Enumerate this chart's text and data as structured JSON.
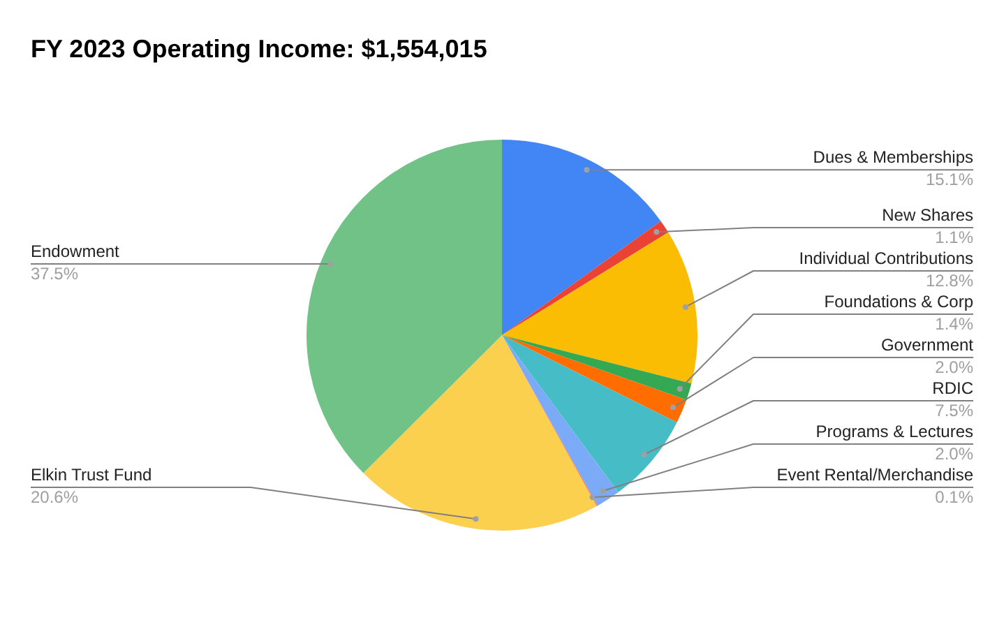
{
  "chart_data": {
    "type": "pie",
    "title": "FY 2023 Operating Income: $1,554,015",
    "categories": [
      "Dues & Memberships",
      "New Shares",
      "Individual Contributions",
      "Foundations & Corp",
      "Government",
      "RDIC",
      "Programs & Lectures",
      "Event Rental/Merchandise",
      "Elkin Trust Fund",
      "Endowment"
    ],
    "values": [
      15.1,
      1.1,
      12.8,
      1.4,
      2.0,
      7.5,
      2.0,
      0.1,
      20.6,
      37.5
    ],
    "value_labels": [
      "15.1%",
      "1.1%",
      "12.8%",
      "1.4%",
      "2.0%",
      "7.5%",
      "2.0%",
      "0.1%",
      "20.6%",
      "37.5%"
    ],
    "colors": [
      "#4285f4",
      "#ea4335",
      "#fbbc04",
      "#34a853",
      "#ff6d01",
      "#46bdc6",
      "#7baaf7",
      "#f07b72",
      "#fcd04f",
      "#71c287"
    ]
  }
}
